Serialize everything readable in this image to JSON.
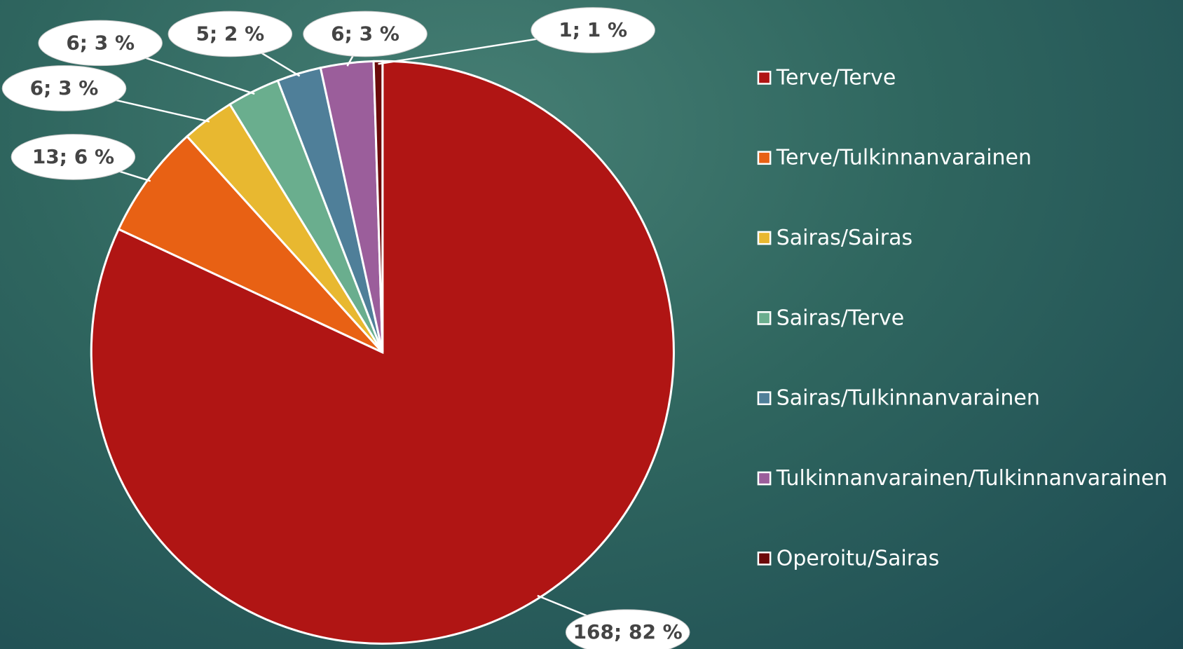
{
  "chart_data": {
    "type": "pie",
    "categories": [
      "Terve/Terve",
      "Terve/Tulkinnanvarainen",
      "Sairas/Sairas",
      "Sairas/Terve",
      "Sairas/Tulkinnanvarainen",
      "Tulkinnanvarainen/Tulkinnanvarainen",
      "Operoitu/Sairas"
    ],
    "values": [
      168,
      13,
      6,
      6,
      5,
      6,
      1
    ],
    "value_labels": [
      "168; 82 %",
      "13; 6 %",
      "6; 3 %",
      "6; 3 %",
      "5; 2 %",
      "6; 3 %",
      "1; 1 %"
    ],
    "colors": [
      "#b01514",
      "#e86114",
      "#e8b830",
      "#6aae8e",
      "#4f7f99",
      "#9b5e9b",
      "#6b0a0a"
    ],
    "legend": "right"
  }
}
